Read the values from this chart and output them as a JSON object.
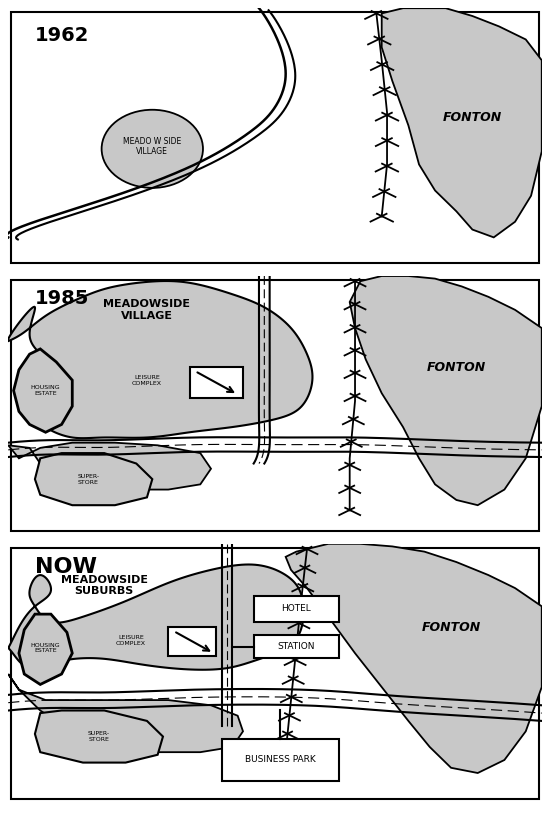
{
  "bg_color": "#ffffff",
  "gray": "#c8c8c8",
  "labels": {
    "1962_year": "1962",
    "1985_year": "1985",
    "now_year": "NOW",
    "meadow_1962": "MEADO W SIDE\nVILLAGE",
    "meadow_1985": "MEADOWSIDE\nVILLAGE",
    "meadow_now": "MEADOWSIDE\nSUBURBS",
    "fonton": "FONTON",
    "housing_estate": "HOUSING\nESTATE",
    "leisure_complex": "LEISURE\nCOMPLEX",
    "superstore": "SUPER-\nSTORE",
    "hotel": "HOTEL",
    "station": "STATION",
    "business_park": "BUSINESS PARK"
  }
}
